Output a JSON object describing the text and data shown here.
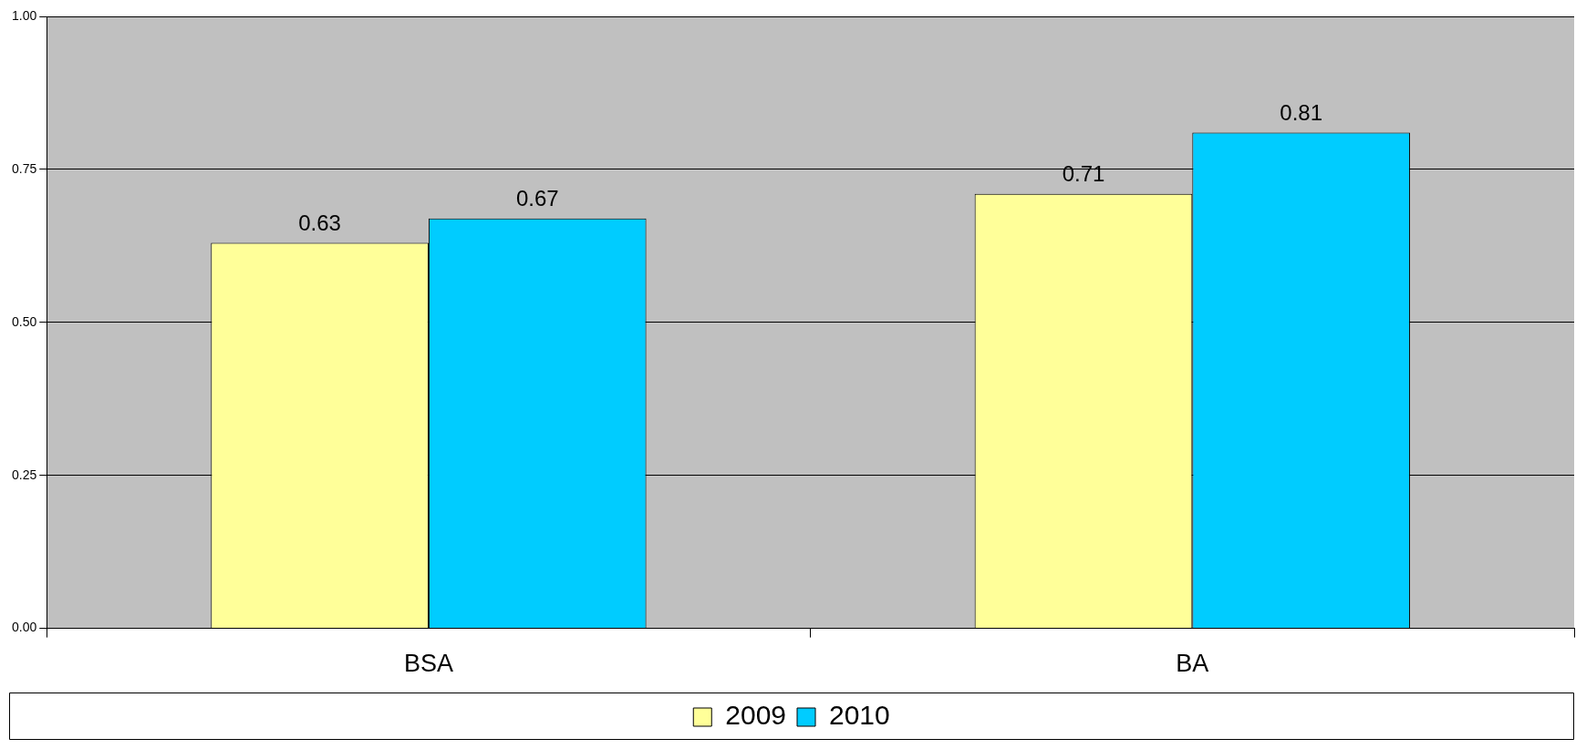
{
  "chart_data": {
    "type": "bar",
    "categories": [
      "BSA",
      "BA"
    ],
    "series": [
      {
        "name": "2009",
        "color": "#ffff99",
        "values": [
          0.63,
          0.71
        ]
      },
      {
        "name": "2010",
        "color": "#00ccff",
        "values": [
          0.67,
          0.81
        ]
      }
    ],
    "ylim": [
      0,
      1
    ],
    "yticks": [
      {
        "value": 0,
        "label": "0.00"
      },
      {
        "value": 0.25,
        "label": "0.25"
      },
      {
        "value": 0.5,
        "label": "0.50"
      },
      {
        "value": 0.75,
        "label": "0.75"
      },
      {
        "value": 1,
        "label": "1.00"
      }
    ],
    "grid": "y",
    "legend": "bottom",
    "data_labels": true
  }
}
